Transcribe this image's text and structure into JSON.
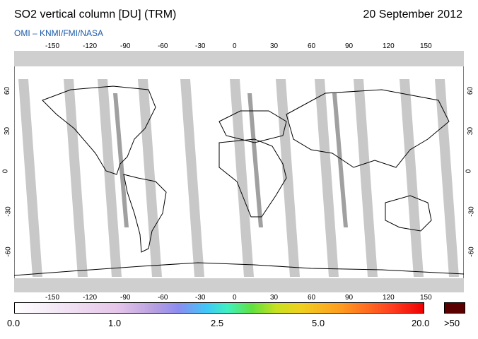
{
  "header": {
    "title": "SO2 vertical column [DU] (TRM)",
    "date": "20 September 2012",
    "subtitle": "OMI  –  KNMI/FMI/NASA"
  },
  "map": {
    "lon_ticks": [
      "-150",
      "-120",
      "-90",
      "-60",
      "-30",
      "0",
      "30",
      "60",
      "90",
      "120",
      "150"
    ],
    "lat_ticks": [
      "60",
      "30",
      "0",
      "-30",
      "-60"
    ],
    "colors": {
      "background": "#ffffff",
      "no_data": "#c8c8c8",
      "overlap": "#a0a0a0",
      "coast": "#000000"
    }
  },
  "colorbar": {
    "labels": [
      "0.0",
      "1.0",
      "2.5",
      "5.0",
      "20.0"
    ],
    "max_label": ">50",
    "max_color": "#5a0000"
  }
}
